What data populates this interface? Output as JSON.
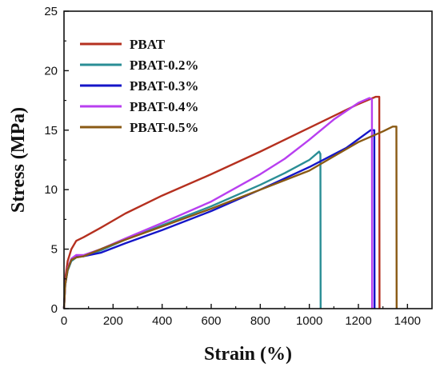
{
  "chart_data": {
    "type": "line",
    "title": "",
    "xlabel": "Strain (%)",
    "ylabel": "Stress (MPa)",
    "xlim": [
      0,
      1500
    ],
    "ylim": [
      0,
      25
    ],
    "xticks": [
      0,
      200,
      400,
      600,
      800,
      1000,
      1200,
      1400
    ],
    "yticks": [
      0,
      5,
      10,
      15,
      20,
      25
    ],
    "grid": false,
    "legend_position": "top-left",
    "series": [
      {
        "name": "PBAT",
        "color": "#b5301f",
        "x": [
          0,
          5,
          15,
          30,
          50,
          80,
          150,
          250,
          400,
          600,
          800,
          1000,
          1200,
          1270,
          1285,
          1286
        ],
        "y": [
          0,
          2.5,
          4.0,
          5.0,
          5.7,
          6.0,
          6.8,
          8.0,
          9.5,
          11.3,
          13.2,
          15.2,
          17.2,
          17.8,
          17.8,
          0
        ]
      },
      {
        "name": "PBAT-0.2%",
        "color": "#2a8e95",
        "x": [
          0,
          5,
          15,
          30,
          50,
          80,
          150,
          250,
          400,
          600,
          800,
          900,
          1000,
          1040,
          1045,
          1046
        ],
        "y": [
          0,
          2.0,
          3.2,
          4.0,
          4.3,
          4.4,
          4.9,
          5.8,
          7.0,
          8.6,
          10.4,
          11.4,
          12.5,
          13.2,
          13.0,
          0
        ]
      },
      {
        "name": "PBAT-0.3%",
        "color": "#1515c8",
        "x": [
          0,
          5,
          15,
          30,
          50,
          80,
          150,
          250,
          400,
          600,
          800,
          1000,
          1150,
          1250,
          1265,
          1266
        ],
        "y": [
          0,
          2.0,
          3.3,
          4.1,
          4.4,
          4.4,
          4.7,
          5.5,
          6.6,
          8.2,
          10.0,
          11.9,
          13.5,
          15.0,
          15.0,
          0
        ]
      },
      {
        "name": "PBAT-0.4%",
        "color": "#b83ff0",
        "x": [
          0,
          5,
          15,
          30,
          50,
          80,
          150,
          250,
          400,
          600,
          800,
          900,
          1000,
          1100,
          1200,
          1245,
          1255,
          1256
        ],
        "y": [
          0,
          2.1,
          3.4,
          4.2,
          4.5,
          4.5,
          5.0,
          5.9,
          7.2,
          9.0,
          11.3,
          12.6,
          14.2,
          15.9,
          17.3,
          17.7,
          17.6,
          0
        ]
      },
      {
        "name": "PBAT-0.5%",
        "color": "#8a5a14",
        "x": [
          0,
          5,
          15,
          30,
          50,
          80,
          150,
          250,
          400,
          600,
          800,
          1000,
          1100,
          1200,
          1300,
          1340,
          1355,
          1356
        ],
        "y": [
          0,
          2.0,
          3.3,
          4.1,
          4.3,
          4.4,
          5.0,
          5.8,
          6.9,
          8.4,
          10.0,
          11.6,
          12.8,
          14.0,
          14.9,
          15.3,
          15.3,
          0
        ]
      }
    ]
  }
}
